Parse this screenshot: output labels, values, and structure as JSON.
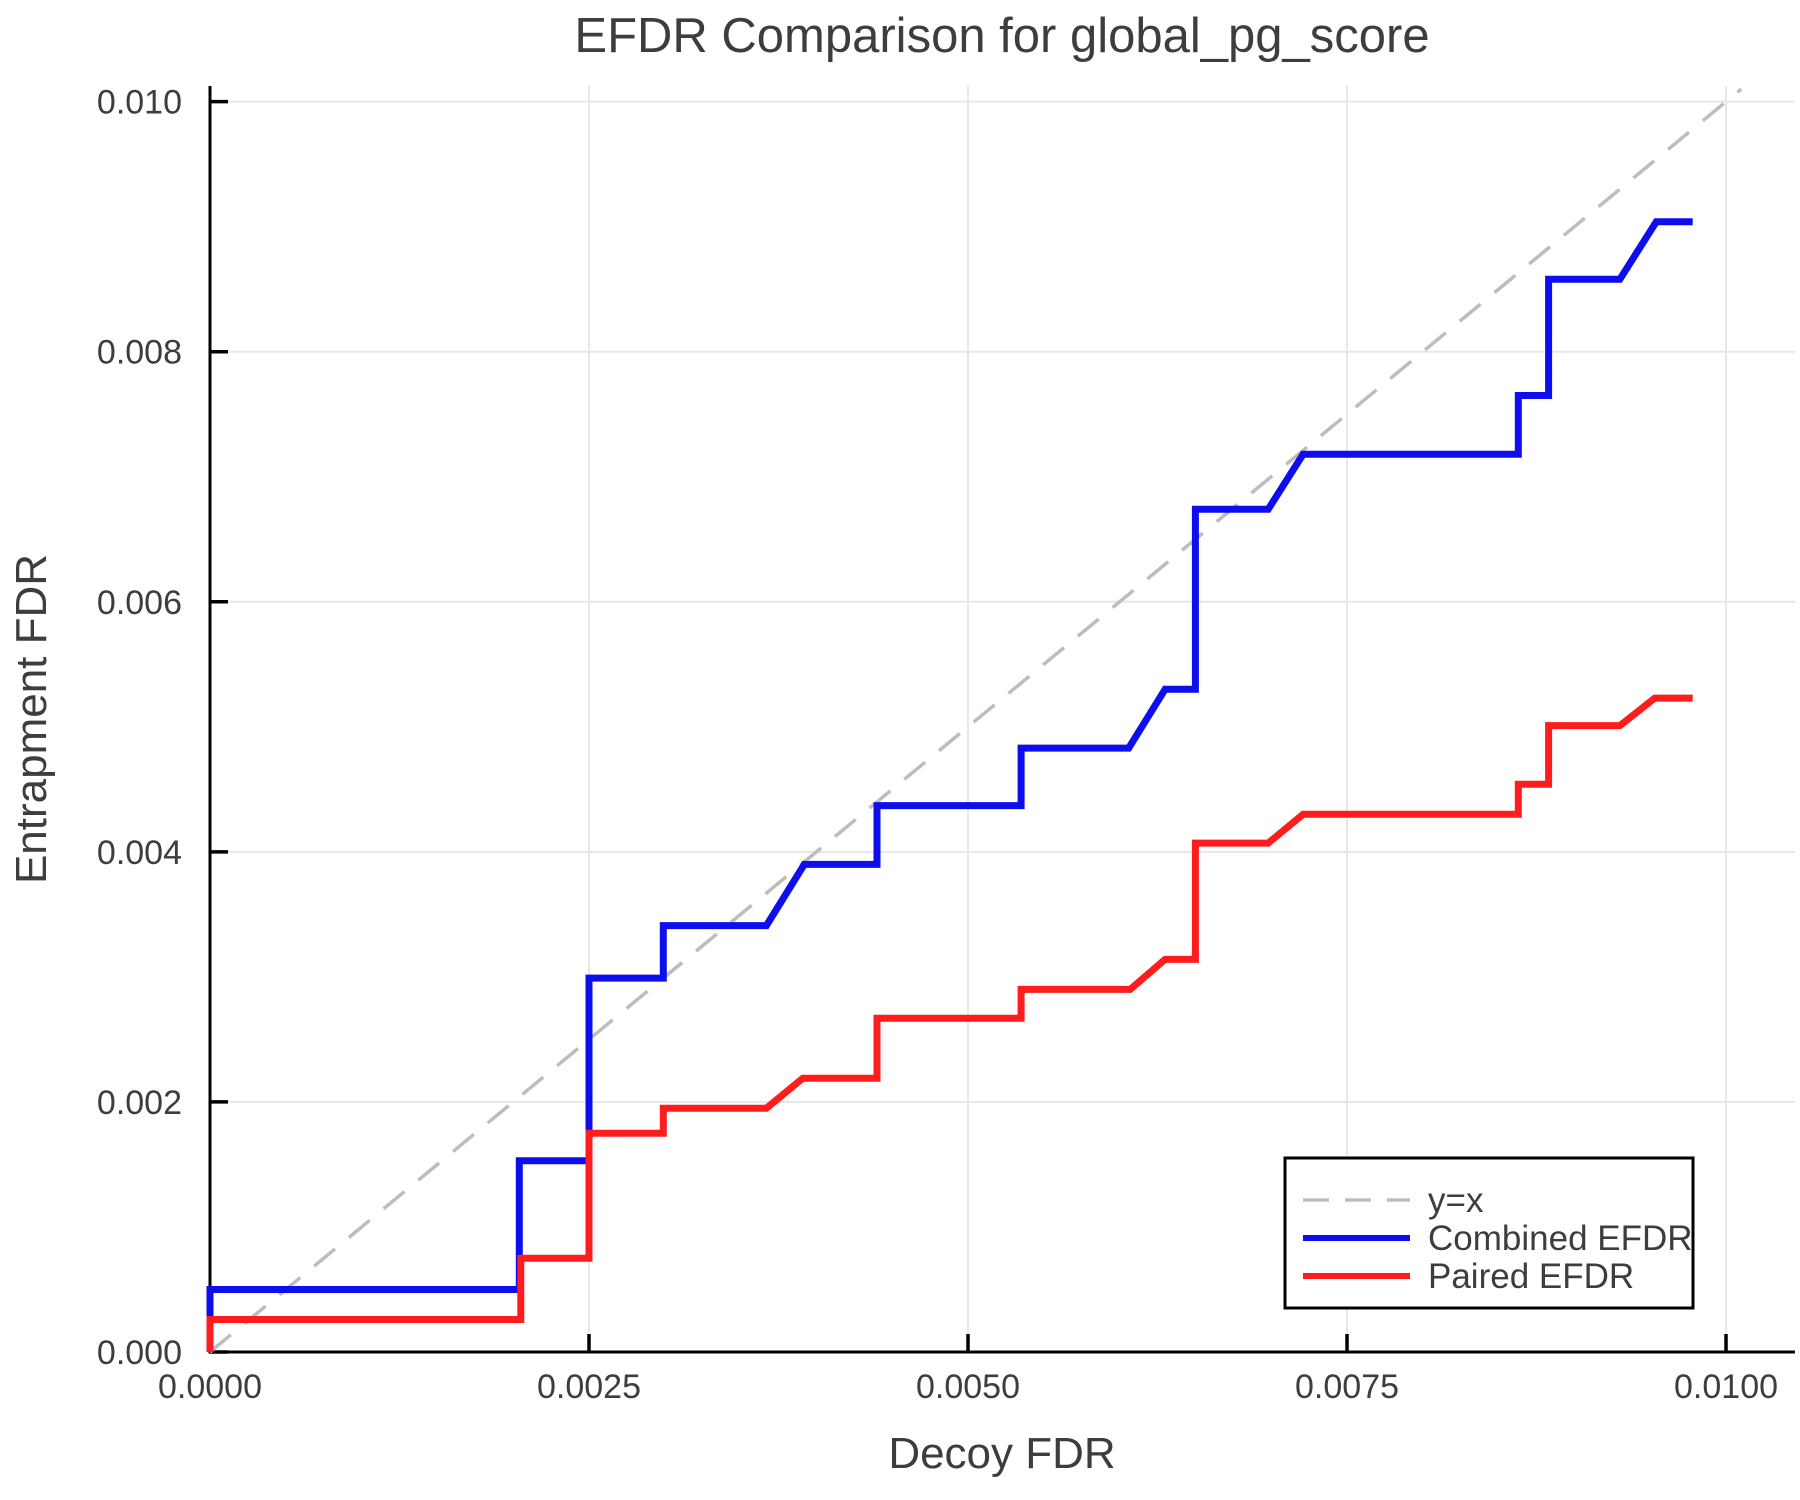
{
  "title": "EFDR Comparison for global_pg_score",
  "colors": {
    "background": "#ffffff",
    "spine": "#000000",
    "grid": "#e7e7e7",
    "text": "#3d3d3d",
    "identity": "#bdbdbd",
    "combined": "#0d0dee",
    "paired": "#ff1c1c"
  },
  "legend": {
    "entries": [
      "y=x",
      "Combined EFDR",
      "Paired EFDR"
    ],
    "border_color": "#000000",
    "background": "#ffffff"
  },
  "chart_data": {
    "type": "line",
    "title": "EFDR Comparison for global_pg_score",
    "xlabel": "Decoy FDR",
    "ylabel": "Entrapment FDR",
    "xlim": [
      0,
      0.010455
    ],
    "ylim": [
      0,
      0.010125
    ],
    "grid": true,
    "legend_position": "lower right",
    "xticks": [
      0.0,
      0.0025,
      0.005,
      0.0075,
      0.01
    ],
    "xtick_labels": [
      "0.0000",
      "0.0025",
      "0.0050",
      "0.0075",
      "0.0100"
    ],
    "yticks": [
      0.0,
      0.002,
      0.004,
      0.006,
      0.008,
      0.01
    ],
    "ytick_labels": [
      "0.000",
      "0.002",
      "0.004",
      "0.006",
      "0.008",
      "0.010"
    ],
    "series": [
      {
        "name": "y=x",
        "style": "dashed",
        "color": "#bdbdbd",
        "width": 3.5,
        "x": [
          0,
          0.0101
        ],
        "y": [
          0,
          0.0101
        ]
      },
      {
        "name": "Combined EFDR",
        "style": "solid",
        "color": "#0d0dee",
        "width": 7,
        "x": [
          0,
          0,
          0.00204,
          0.00204,
          0.0025,
          0.0025,
          0.00299,
          0.00299,
          0.00367,
          0.00392,
          0.0044,
          0.0044,
          0.00535,
          0.00535,
          0.00606,
          0.0063,
          0.0065,
          0.0065,
          0.00698,
          0.00721,
          0.00863,
          0.00863,
          0.00883,
          0.00883,
          0.0093,
          0.00954,
          0.00978
        ],
        "y": [
          0,
          0.0005,
          0.0005,
          0.00153,
          0.00153,
          0.00299,
          0.00299,
          0.00341,
          0.00341,
          0.0039,
          0.0039,
          0.00437,
          0.00437,
          0.00483,
          0.00483,
          0.0053,
          0.0053,
          0.00674,
          0.00674,
          0.00718,
          0.00718,
          0.00765,
          0.00765,
          0.00858,
          0.00858,
          0.00904,
          0.00904
        ]
      },
      {
        "name": "Paired EFDR",
        "style": "solid",
        "color": "#ff1c1c",
        "width": 7,
        "x": [
          0,
          0,
          0.00205,
          0.00205,
          0.0025,
          0.0025,
          0.00299,
          0.00299,
          0.00367,
          0.00391,
          0.0044,
          0.0044,
          0.00535,
          0.00535,
          0.00607,
          0.0063,
          0.0065,
          0.0065,
          0.00698,
          0.00721,
          0.00863,
          0.00863,
          0.00883,
          0.00883,
          0.0093,
          0.00953,
          0.00978
        ],
        "y": [
          0,
          0.00026,
          0.00026,
          0.00075,
          0.00075,
          0.00175,
          0.00175,
          0.00195,
          0.00195,
          0.00219,
          0.00219,
          0.00267,
          0.00267,
          0.0029,
          0.0029,
          0.00314,
          0.00314,
          0.00407,
          0.00407,
          0.0043,
          0.0043,
          0.00454,
          0.00454,
          0.00501,
          0.00501,
          0.00523,
          0.00523
        ]
      }
    ]
  }
}
